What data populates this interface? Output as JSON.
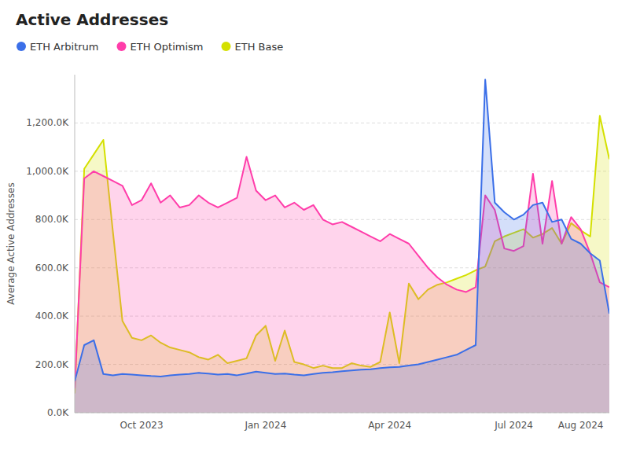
{
  "chart_data": {
    "type": "area",
    "title": "Active Addresses",
    "y_label": "Average Active Addresses",
    "categories": [
      null,
      null,
      null,
      null,
      null,
      null,
      null,
      "Oct 2023",
      null,
      null,
      null,
      null,
      null,
      null,
      null,
      null,
      null,
      null,
      null,
      null,
      "Jan 2024",
      null,
      null,
      null,
      null,
      null,
      null,
      null,
      null,
      null,
      null,
      null,
      null,
      "Apr 2024",
      null,
      null,
      null,
      null,
      null,
      null,
      null,
      null,
      null,
      null,
      null,
      null,
      "Jul 2024",
      null,
      null,
      null,
      null,
      null,
      null,
      "Aug 2024",
      null,
      null,
      null
    ],
    "series": [
      {
        "name": "ETH Arbitrum",
        "color": "#3B6FE8",
        "values": [
          130000,
          280000,
          300000,
          160000,
          155000,
          160000,
          158000,
          155000,
          152000,
          150000,
          155000,
          158000,
          160000,
          165000,
          162000,
          158000,
          160000,
          155000,
          162000,
          170000,
          165000,
          160000,
          162000,
          158000,
          155000,
          160000,
          165000,
          168000,
          172000,
          175000,
          178000,
          180000,
          185000,
          188000,
          190000,
          195000,
          200000,
          210000,
          220000,
          230000,
          240000,
          260000,
          280000,
          1380000,
          870000,
          830000,
          800000,
          820000,
          860000,
          870000,
          790000,
          800000,
          720000,
          700000,
          660000,
          630000,
          410000
        ]
      },
      {
        "name": "ETH Optimism",
        "color": "#FF3DAA",
        "values": [
          100000,
          970000,
          1000000,
          980000,
          960000,
          940000,
          860000,
          880000,
          950000,
          870000,
          900000,
          850000,
          860000,
          900000,
          870000,
          850000,
          870000,
          890000,
          1060000,
          920000,
          880000,
          900000,
          850000,
          870000,
          840000,
          860000,
          800000,
          780000,
          790000,
          770000,
          750000,
          730000,
          710000,
          740000,
          720000,
          700000,
          650000,
          600000,
          560000,
          530000,
          510000,
          500000,
          520000,
          900000,
          840000,
          680000,
          670000,
          690000,
          990000,
          700000,
          960000,
          700000,
          810000,
          760000,
          660000,
          540000,
          520000
        ]
      },
      {
        "name": "ETH Base",
        "color": "#D4E000",
        "values": [
          80000,
          1010000,
          1070000,
          1130000,
          750000,
          380000,
          310000,
          300000,
          320000,
          290000,
          270000,
          260000,
          250000,
          230000,
          220000,
          240000,
          205000,
          215000,
          225000,
          320000,
          360000,
          215000,
          340000,
          210000,
          200000,
          185000,
          195000,
          185000,
          185000,
          205000,
          195000,
          190000,
          210000,
          415000,
          205000,
          535000,
          470000,
          510000,
          530000,
          540000,
          555000,
          570000,
          590000,
          605000,
          710000,
          730000,
          745000,
          760000,
          725000,
          740000,
          765000,
          700000,
          785000,
          755000,
          730000,
          1230000,
          1050000
        ]
      }
    ],
    "ylim": [
      0,
      1400000
    ],
    "yticks": [
      {
        "value": 0,
        "label": "0.0K"
      },
      {
        "value": 200000,
        "label": "200.0K"
      },
      {
        "value": 400000,
        "label": "400.0K"
      },
      {
        "value": 600000,
        "label": "600.0K"
      },
      {
        "value": 800000,
        "label": "800.0K"
      },
      {
        "value": 1000000,
        "label": "1,000.0K"
      },
      {
        "value": 1200000,
        "label": "1,200.0K"
      }
    ],
    "grid": true,
    "legend": "upper left"
  }
}
